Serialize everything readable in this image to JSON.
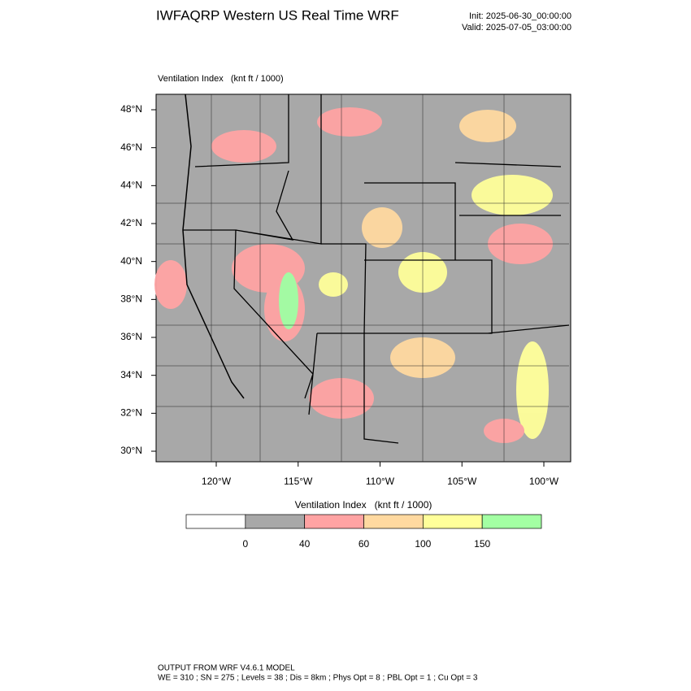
{
  "header": {
    "title": "IWFAQRP Western US Real Time WRF",
    "init": "Init: 2025-06-30_00:00:00",
    "valid": "Valid: 2025-07-05_03:00:00"
  },
  "map": {
    "title": "Ventilation Index   (knt ft / 1000)",
    "lat_labels": [
      "48°N",
      "46°N",
      "44°N",
      "42°N",
      "40°N",
      "38°N",
      "36°N",
      "34°N",
      "32°N",
      "30°N"
    ],
    "lon_labels": [
      "120°W",
      "115°W",
      "110°W",
      "105°W",
      "100°W"
    ]
  },
  "colorbar": {
    "title": "Ventilation Index   (knt ft / 1000)",
    "colors": [
      "#ffffff",
      "#a8a8a8",
      "#ffa3a3",
      "#ffd9a0",
      "#ffff9a",
      "#a3ffa3"
    ],
    "labels": [
      "0",
      "40",
      "60",
      "100",
      "150"
    ]
  },
  "footer": {
    "lines": [
      "OUTPUT FROM WRF V4.6.1 MODEL",
      "WE = 310 ; SN = 275 ; Levels = 38 ; Dis = 8km ; Phys Opt = 8 ; PBL Opt = 1 ; Cu Opt = 3"
    ]
  }
}
